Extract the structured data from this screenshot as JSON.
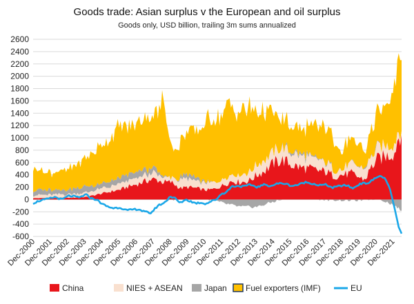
{
  "chart_data": {
    "type": "area",
    "title": "Goods trade: Asian surplus v the European and oil surplus",
    "subtitle": "Goods only, USD billion, trailing 3m sums annualized",
    "ylim": [
      -600,
      2600
    ],
    "y_ticks": [
      2600,
      2400,
      2200,
      2000,
      1800,
      1600,
      1400,
      1200,
      1000,
      800,
      600,
      400,
      200,
      0,
      -200,
      -400,
      -600
    ],
    "x_ticks": [
      "Dec-2000",
      "Dec-2001",
      "Dec-2002",
      "Dec-2003",
      "Dec-2004",
      "Dec-2005",
      "Dec-2006",
      "Dec-2007",
      "Dec-2008",
      "Dec-2009",
      "Dec-2010",
      "Dec-2011",
      "Dec-2012",
      "Dec-2013",
      "Dec-2014",
      "Dec-2015",
      "Dec-2016",
      "Dec-2017",
      "Dec-2018",
      "Dec-2019",
      "Dec-2020",
      "Dec-2021"
    ],
    "x_start": 2000.92,
    "x_end": 2022.42,
    "colors": {
      "china": "#e8161b",
      "nies": "#f9e0cf",
      "japan": "#a6a6a6",
      "fuel": "#ffc000",
      "eu": "#1aa7e8",
      "fuel_legend_border": "#1f3864"
    },
    "series": [
      {
        "name": "China",
        "kind": "stacked_area",
        "x": [
          2000.92,
          2002.0,
          2003.0,
          2004.0,
          2005.0,
          2005.5,
          2006.0,
          2006.5,
          2007.0,
          2007.5,
          2008.0,
          2008.5,
          2009.0,
          2009.5,
          2010.0,
          2010.5,
          2011.0,
          2011.5,
          2012.0,
          2012.5,
          2013.0,
          2013.5,
          2014.0,
          2014.5,
          2015.0,
          2015.5,
          2016.0,
          2016.5,
          2017.0,
          2017.5,
          2018.0,
          2018.5,
          2019.0,
          2019.5,
          2020.0,
          2020.3,
          2020.6,
          2021.0,
          2021.5,
          2022.0,
          2022.2,
          2022.42
        ],
        "values": [
          20,
          25,
          25,
          40,
          100,
          130,
          160,
          210,
          250,
          300,
          330,
          280,
          280,
          180,
          200,
          180,
          150,
          170,
          230,
          300,
          280,
          300,
          400,
          480,
          600,
          640,
          560,
          520,
          500,
          470,
          450,
          380,
          400,
          420,
          350,
          320,
          500,
          650,
          700,
          750,
          1000,
          1100
        ]
      },
      {
        "name": "NIES + ASEAN",
        "kind": "stacked_area",
        "x": [
          2000.92,
          2002.0,
          2003.0,
          2004.0,
          2005.0,
          2006.0,
          2007.0,
          2008.0,
          2008.9,
          2009.5,
          2010.0,
          2011.0,
          2012.0,
          2013.0,
          2014.0,
          2015.0,
          2016.0,
          2017.0,
          2018.0,
          2018.9,
          2019.5,
          2020.0,
          2020.5,
          2021.0,
          2021.5,
          2022.0,
          2022.42
        ],
        "values": [
          50,
          50,
          60,
          70,
          80,
          90,
          100,
          100,
          60,
          130,
          130,
          110,
          110,
          120,
          160,
          190,
          190,
          180,
          150,
          80,
          160,
          160,
          170,
          180,
          180,
          150,
          80
        ]
      },
      {
        "name": "Japan",
        "kind": "stacked_area_signed",
        "x": [
          2000.92,
          2002.0,
          2003.0,
          2004.0,
          2005.0,
          2006.0,
          2007.0,
          2008.0,
          2008.9,
          2009.5,
          2010.0,
          2011.0,
          2011.5,
          2012.0,
          2013.0,
          2014.0,
          2015.0,
          2016.0,
          2017.0,
          2018.0,
          2019.0,
          2020.0,
          2021.0,
          2021.5,
          2022.0,
          2022.42
        ],
        "values": [
          80,
          80,
          80,
          100,
          80,
          90,
          100,
          80,
          -20,
          40,
          80,
          20,
          -20,
          -60,
          -120,
          -120,
          -30,
          40,
          30,
          0,
          -10,
          -10,
          20,
          -30,
          -100,
          -180
        ]
      },
      {
        "name": "Fuel exporters (IMF)",
        "kind": "stacked_area",
        "x": [
          2000.92,
          2001.5,
          2002.0,
          2003.0,
          2004.0,
          2004.5,
          2005.0,
          2005.5,
          2006.0,
          2006.5,
          2007.0,
          2007.5,
          2008.0,
          2008.3,
          2008.5,
          2008.7,
          2009.0,
          2009.3,
          2009.6,
          2010.0,
          2010.5,
          2011.0,
          2011.5,
          2012.0,
          2012.3,
          2012.6,
          2013.0,
          2013.5,
          2014.0,
          2014.5,
          2015.0,
          2015.5,
          2016.0,
          2016.5,
          2017.0,
          2017.5,
          2018.0,
          2018.5,
          2018.9,
          2019.3,
          2019.7,
          2020.0,
          2020.3,
          2020.6,
          2021.0,
          2021.3,
          2021.6,
          2022.0,
          2022.2,
          2022.42
        ],
        "values": [
          380,
          300,
          280,
          330,
          460,
          560,
          640,
          720,
          850,
          760,
          780,
          880,
          850,
          1000,
          1300,
          1000,
          500,
          450,
          620,
          700,
          750,
          980,
          1060,
          1070,
          1200,
          1050,
          1050,
          1050,
          880,
          800,
          580,
          450,
          400,
          400,
          480,
          500,
          580,
          500,
          280,
          400,
          350,
          380,
          200,
          420,
          550,
          600,
          750,
          950,
          1200,
          1150
        ]
      },
      {
        "name": "EU",
        "kind": "line",
        "x": [
          2000.92,
          2001.3,
          2001.8,
          2002.2,
          2002.6,
          2003.0,
          2003.3,
          2003.6,
          2004.0,
          2004.3,
          2004.6,
          2005.0,
          2005.3,
          2005.6,
          2006.0,
          2006.4,
          2006.8,
          2007.1,
          2007.4,
          2007.8,
          2008.2,
          2008.6,
          2008.9,
          2009.2,
          2009.5,
          2009.8,
          2010.1,
          2010.4,
          2010.7,
          2011.0,
          2011.3,
          2011.6,
          2011.9,
          2012.2,
          2012.5,
          2012.8,
          2013.2,
          2013.6,
          2014.0,
          2014.4,
          2014.8,
          2015.2,
          2015.6,
          2016.0,
          2016.4,
          2016.8,
          2017.2,
          2017.6,
          2018.0,
          2018.4,
          2018.8,
          2019.2,
          2019.6,
          2020.0,
          2020.2,
          2020.5,
          2020.8,
          2021.1,
          2021.4,
          2021.7,
          2022.0,
          2022.2,
          2022.42
        ],
        "values": [
          -60,
          -20,
          10,
          40,
          0,
          60,
          50,
          30,
          80,
          20,
          0,
          -80,
          -120,
          -140,
          -130,
          -180,
          -160,
          -160,
          -200,
          -220,
          -100,
          -50,
          50,
          20,
          -60,
          0,
          -30,
          -60,
          -50,
          -70,
          -30,
          0,
          90,
          120,
          210,
          220,
          210,
          240,
          200,
          240,
          220,
          260,
          260,
          220,
          240,
          280,
          260,
          230,
          240,
          190,
          220,
          230,
          180,
          260,
          260,
          270,
          330,
          380,
          360,
          200,
          -120,
          -400,
          -560
        ]
      }
    ],
    "legend_position": "bottom",
    "legend_entries": [
      "China",
      "NIES + ASEAN",
      "Japan",
      "Fuel exporters (IMF)",
      "EU"
    ]
  }
}
